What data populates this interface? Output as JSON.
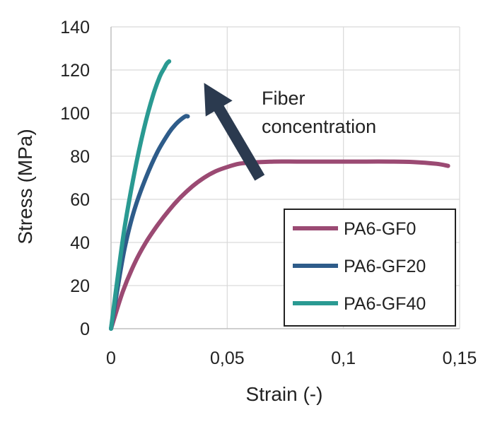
{
  "chart_data": {
    "type": "line",
    "xlabel": "Strain (-)",
    "ylabel": "Stress (MPa)",
    "xlim": [
      0,
      0.15
    ],
    "ylim": [
      0,
      140
    ],
    "xticks": [
      0,
      0.05,
      0.1,
      0.15
    ],
    "xtick_labels": [
      "0",
      "0,05",
      "0,1",
      "0,15"
    ],
    "yticks": [
      0,
      20,
      40,
      60,
      80,
      100,
      120,
      140
    ],
    "ytick_labels": [
      "0",
      "20",
      "40",
      "60",
      "80",
      "100",
      "120",
      "140"
    ],
    "grid": true,
    "legend_position": "bottom-right",
    "series": [
      {
        "name": "PA6-GF0",
        "color": "#9B4A73",
        "x": [
          0,
          0.005,
          0.01,
          0.015,
          0.02,
          0.025,
          0.03,
          0.035,
          0.04,
          0.045,
          0.05,
          0.055,
          0.06,
          0.07,
          0.08,
          0.09,
          0.1,
          0.11,
          0.12,
          0.13,
          0.14,
          0.145
        ],
        "y": [
          0,
          17,
          30,
          40,
          48,
          55,
          61,
          66,
          70,
          73,
          75,
          76.5,
          77,
          77.5,
          77.5,
          77.5,
          77.5,
          77.5,
          77.5,
          77.3,
          76.5,
          75.5
        ]
      },
      {
        "name": "PA6-GF20",
        "color": "#2E5C8A",
        "x": [
          0,
          0.003,
          0.006,
          0.01,
          0.015,
          0.02,
          0.025,
          0.028,
          0.03,
          0.032,
          0.033
        ],
        "y": [
          0,
          20,
          38,
          55,
          70,
          82,
          91,
          95,
          97,
          98.5,
          98.5
        ]
      },
      {
        "name": "PA6-GF40",
        "color": "#2A9A92",
        "x": [
          0,
          0.003,
          0.006,
          0.01,
          0.014,
          0.018,
          0.021,
          0.023,
          0.024,
          0.025
        ],
        "y": [
          0,
          25,
          48,
          72,
          92,
          108,
          117,
          121,
          123,
          124
        ]
      }
    ],
    "annotations": [
      {
        "text_lines": [
          "Fiber",
          "concentration"
        ],
        "arrow_from": [
          0.064,
          70
        ],
        "arrow_to": [
          0.04,
          114
        ]
      }
    ]
  }
}
